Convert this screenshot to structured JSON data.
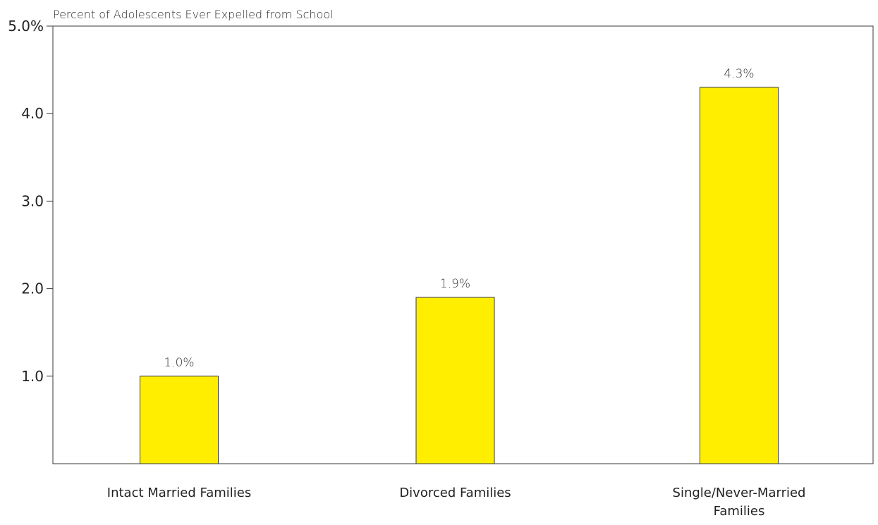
{
  "chart_data": {
    "type": "bar",
    "title": "",
    "ylabel": "Percent of Adolescents Ever Expelled from School",
    "xlabel": "",
    "categories": [
      "Intact Married Families",
      "Divorced Families",
      "Single/Never-Married Families"
    ],
    "category_lines": [
      [
        "Intact Married Families"
      ],
      [
        "Divorced Families"
      ],
      [
        "Single/Never-Married",
        "Families"
      ]
    ],
    "values": [
      1.0,
      1.9,
      4.3
    ],
    "value_labels": [
      "1.0%",
      "1.9%",
      "4.3%"
    ],
    "ylim": [
      0,
      5.0
    ],
    "yticks": [
      1.0,
      2.0,
      3.0,
      4.0,
      5.0
    ],
    "ytick_labels": [
      "1.0",
      "2.0",
      "3.0",
      "4.0",
      "5.0%"
    ],
    "grid": false,
    "legend": "none",
    "colors": {
      "bar_fill": "#FFEE00",
      "bar_stroke": "#3a3a3a",
      "axis": "#3a3a3a",
      "text": "#222222"
    }
  }
}
